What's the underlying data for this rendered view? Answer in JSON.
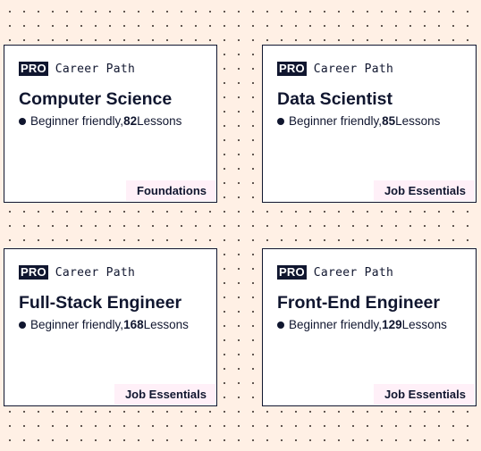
{
  "colors": {
    "background": "#fff0e5",
    "dot_grid": "#4a3f3a",
    "ink": "#10162f",
    "card": "#ffffff",
    "tag_bg": "#fff0f8"
  },
  "cards": [
    {
      "badge": "PRO",
      "type": "Career Path",
      "title": "Computer Science",
      "level": "Beginner friendly, ",
      "lessons_count": "82",
      "lessons_label": " Lessons",
      "tag": "Foundations"
    },
    {
      "badge": "PRO",
      "type": "Career Path",
      "title": "Data Scientist",
      "level": "Beginner friendly, ",
      "lessons_count": "85",
      "lessons_label": " Lessons",
      "tag": "Job Essentials"
    },
    {
      "badge": "PRO",
      "type": "Career Path",
      "title": "Full-Stack Engineer",
      "level": "Beginner friendly, ",
      "lessons_count": "168",
      "lessons_label": " Lessons",
      "tag": "Job Essentials"
    },
    {
      "badge": "PRO",
      "type": "Career Path",
      "title": "Front-End Engineer",
      "level": "Beginner friendly, ",
      "lessons_count": "129",
      "lessons_label": " Lessons",
      "tag": "Job Essentials"
    }
  ]
}
